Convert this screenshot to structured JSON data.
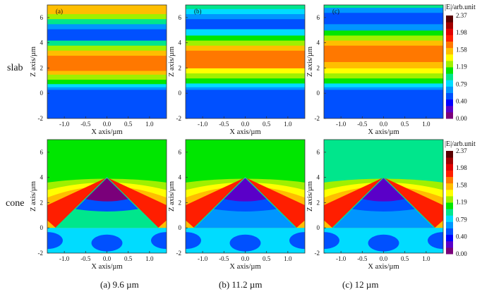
{
  "row_labels": [
    "slab",
    "cone"
  ],
  "captions": [
    "(a) 9.6 µm",
    "(b) 11.2 µm",
    "(c) 12 µm"
  ],
  "colorbar": {
    "title": "|E|/arb.unit",
    "ticks": [
      "2.37",
      "1.98",
      "1.58",
      "1.19",
      "0.79",
      "0.40",
      "0.00"
    ],
    "range": [
      0.0,
      2.37
    ],
    "colors": [
      "#7a007a",
      "#5a00c8",
      "#0000ff",
      "#0050ff",
      "#0096ff",
      "#00dcff",
      "#00e68c",
      "#00e600",
      "#a0f000",
      "#ffff00",
      "#ffbe00",
      "#ff7800",
      "#ff1e00",
      "#e10000",
      "#a00000",
      "#5a0000"
    ]
  },
  "chart_data": [
    {
      "type": "heatmap",
      "id": "slab-a",
      "panel_label": "(a)",
      "structure": "slab",
      "wavelength": "9.6 µm",
      "xlabel": "X axis/µm",
      "ylabel": "Z axis/µm",
      "xlim": [
        -1.4,
        1.4
      ],
      "ylim": [
        -2,
        7
      ],
      "xticks": [
        "-1.0",
        "-0.5",
        "0.0",
        "0.5",
        "1.0"
      ],
      "yticks": [
        "-2",
        "0",
        "2",
        "4",
        "6"
      ],
      "bands_z": [
        [
          -2,
          0.3,
          0.45
        ],
        [
          0.3,
          0.5,
          0.65
        ],
        [
          0.5,
          0.75,
          0.8
        ],
        [
          0.75,
          1.1,
          1.05
        ],
        [
          1.1,
          1.5,
          1.25
        ],
        [
          1.5,
          1.8,
          1.5
        ],
        [
          1.8,
          3.0,
          1.75
        ],
        [
          3.0,
          3.4,
          1.5
        ],
        [
          3.4,
          3.8,
          1.2
        ],
        [
          3.8,
          4.2,
          0.9
        ],
        [
          4.2,
          4.6,
          0.55
        ],
        [
          4.6,
          5.1,
          0.45
        ],
        [
          5.1,
          5.5,
          0.65
        ],
        [
          5.5,
          5.9,
          1.0
        ],
        [
          5.9,
          6.3,
          1.25
        ],
        [
          6.3,
          7.0,
          1.6
        ]
      ]
    },
    {
      "type": "heatmap",
      "id": "slab-b",
      "panel_label": "(b)",
      "structure": "slab",
      "wavelength": "11.2 µm",
      "xlabel": "X axis/µm",
      "ylabel": "Z axis/µm",
      "xlim": [
        -1.4,
        1.4
      ],
      "ylim": [
        -2,
        7
      ],
      "xticks": [
        "-1.0",
        "-0.5",
        "0.0",
        "0.5",
        "1.0"
      ],
      "yticks": [
        "-2",
        "0",
        "2",
        "4",
        "6"
      ],
      "bands_z": [
        [
          -2,
          0.3,
          0.45
        ],
        [
          0.3,
          0.5,
          0.65
        ],
        [
          0.5,
          0.8,
          0.85
        ],
        [
          0.8,
          1.2,
          1.05
        ],
        [
          1.2,
          1.6,
          1.25
        ],
        [
          1.6,
          2.0,
          1.45
        ],
        [
          2.0,
          3.4,
          1.75
        ],
        [
          3.4,
          3.8,
          1.5
        ],
        [
          3.8,
          4.2,
          1.25
        ],
        [
          4.2,
          4.6,
          1.05
        ],
        [
          4.6,
          5.1,
          0.8
        ],
        [
          5.1,
          5.5,
          0.55
        ],
        [
          5.5,
          5.9,
          0.45
        ],
        [
          5.9,
          6.3,
          0.6
        ],
        [
          6.3,
          6.7,
          0.85
        ],
        [
          6.7,
          7.0,
          1.0
        ]
      ]
    },
    {
      "type": "heatmap",
      "id": "slab-c",
      "panel_label": "(c)",
      "structure": "slab",
      "wavelength": "12 µm",
      "xlabel": "X axis/µm",
      "ylabel": "Z axis/µm",
      "xlim": [
        -1.4,
        1.4
      ],
      "ylim": [
        -2,
        7
      ],
      "xticks": [
        "-1.0",
        "-0.5",
        "0.0",
        "0.5",
        "1.0"
      ],
      "yticks": [
        "-2",
        "0",
        "2",
        "4",
        "6"
      ],
      "bands_z": [
        [
          -2,
          0.3,
          0.45
        ],
        [
          0.3,
          0.5,
          0.65
        ],
        [
          0.5,
          0.8,
          0.85
        ],
        [
          0.8,
          1.2,
          1.05
        ],
        [
          1.2,
          1.6,
          1.25
        ],
        [
          1.6,
          2.0,
          1.45
        ],
        [
          2.0,
          2.5,
          1.55
        ],
        [
          2.5,
          3.8,
          1.75
        ],
        [
          3.8,
          4.2,
          1.5
        ],
        [
          4.2,
          4.6,
          1.25
        ],
        [
          4.6,
          5.0,
          1.05
        ],
        [
          5.0,
          5.5,
          0.7
        ],
        [
          5.5,
          6.4,
          0.45
        ],
        [
          6.4,
          6.8,
          0.6
        ],
        [
          6.8,
          7.0,
          0.95
        ]
      ]
    },
    {
      "type": "heatmap",
      "id": "cone-a",
      "structure": "cone",
      "wavelength": "9.6 µm",
      "xlabel": "X axis/µm",
      "ylabel": "Z axis/µm",
      "xlim": [
        -1.4,
        1.4
      ],
      "ylim": [
        -2,
        7
      ],
      "xticks": [
        "-1.0",
        "-0.5",
        "0.0",
        "0.5",
        "1.0"
      ],
      "yticks": [
        "-2",
        "0",
        "2",
        "4",
        "6"
      ],
      "cone": {
        "apex": [
          0.0,
          4.0
        ],
        "base_left": [
          -1.2,
          0.0
        ],
        "base_right": [
          1.2,
          0.0
        ]
      },
      "background_value": 1.05,
      "flank_value": 1.8,
      "tip_inside_value": 0.1,
      "inside_value": 0.95,
      "substrate_value": 0.55
    },
    {
      "type": "heatmap",
      "id": "cone-b",
      "structure": "cone",
      "wavelength": "11.2 µm",
      "xlabel": "X axis/µm",
      "ylabel": "Z axis/µm",
      "xlim": [
        -1.4,
        1.4
      ],
      "ylim": [
        -2,
        7
      ],
      "xticks": [
        "-1.0",
        "-0.5",
        "0.0",
        "0.5",
        "1.0"
      ],
      "yticks": [
        "-2",
        "0",
        "2",
        "4",
        "6"
      ],
      "cone": {
        "apex": [
          0.0,
          4.0
        ],
        "base_left": [
          -1.2,
          0.0
        ],
        "base_right": [
          1.2,
          0.0
        ]
      },
      "background_value": 1.05,
      "flank_value": 1.8,
      "tip_inside_value": 0.15,
      "inside_value": 0.7,
      "substrate_value": 0.5
    },
    {
      "type": "heatmap",
      "id": "cone-c",
      "structure": "cone",
      "wavelength": "12 µm",
      "xlabel": "X axis/µm",
      "ylabel": "Z axis/µm",
      "xlim": [
        -1.4,
        1.4
      ],
      "ylim": [
        -2,
        7
      ],
      "xticks": [
        "-1.0",
        "-0.5",
        "0.0",
        "0.5",
        "1.0"
      ],
      "yticks": [
        "-2",
        "0",
        "2",
        "4",
        "6"
      ],
      "cone": {
        "apex": [
          0.0,
          4.0
        ],
        "base_left": [
          -1.2,
          0.0
        ],
        "base_right": [
          1.2,
          0.0
        ]
      },
      "background_value": 1.0,
      "flank_value": 1.8,
      "tip_inside_value": 0.15,
      "inside_value": 0.6,
      "substrate_value": 0.5
    }
  ]
}
